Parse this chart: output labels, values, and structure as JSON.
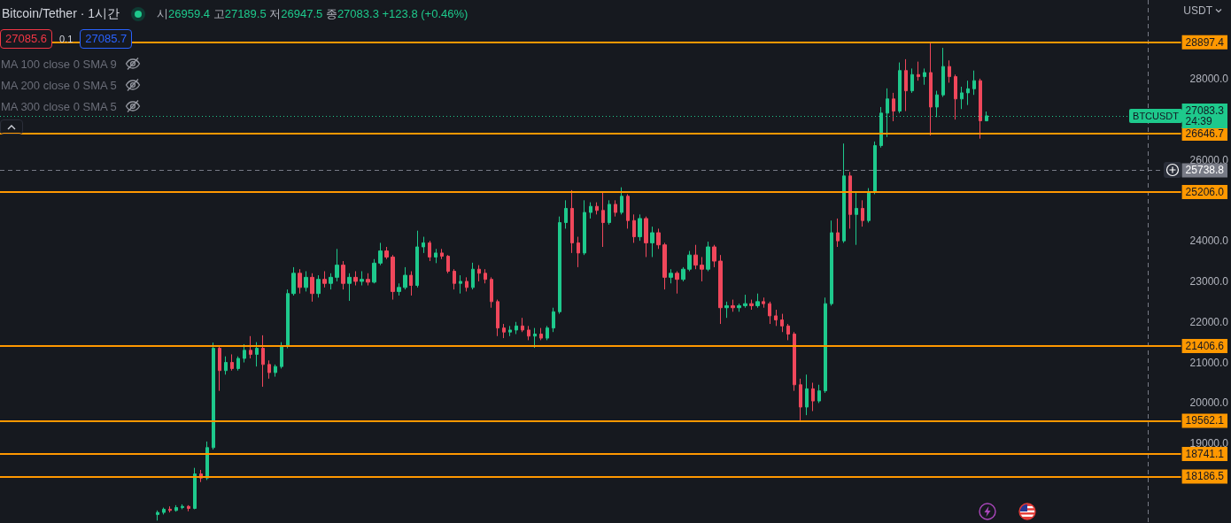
{
  "chart_data": {
    "type": "candlestick",
    "title": "Bitcoin/Tether · 1시간",
    "subtitle": "시26959.4 고27189.5 저26947.5 종27083.3 +123.8 (+0.46%)",
    "ylabel": "USDT",
    "annotations": [
      "27085.6",
      "0.1",
      "27085.7",
      "MA 100 close 0 SMA 9",
      "MA 200 close 0 SMA 5",
      "MA 300 close 0 SMA 5",
      {
        "text": "BTCUSDT",
        "y": 27083.3
      }
    ],
    "categories": [
      null,
      null,
      null,
      null,
      null,
      null,
      null,
      null,
      null,
      null,
      null,
      null,
      null,
      null,
      null,
      null,
      null,
      null,
      null,
      null,
      null,
      null,
      null,
      null,
      null,
      null,
      null,
      null,
      null,
      null,
      null,
      null,
      null,
      null,
      null,
      null,
      null,
      null,
      null,
      null,
      null,
      null,
      null,
      null,
      null,
      null,
      null,
      null,
      null,
      null,
      null,
      null,
      null,
      null,
      null,
      null,
      null,
      null,
      null,
      null,
      null,
      null,
      null,
      null,
      null,
      null,
      null,
      null,
      null,
      null,
      null,
      null,
      null,
      null,
      null,
      null,
      null,
      null,
      null,
      null,
      null,
      null,
      null,
      null,
      null,
      null,
      null,
      null,
      null,
      null,
      null,
      null,
      null,
      null,
      null,
      null,
      null,
      null,
      null,
      null,
      null,
      null,
      null,
      null,
      null,
      null,
      null,
      null,
      null,
      null,
      null,
      null,
      null,
      null,
      null,
      null,
      null,
      null,
      null,
      null,
      null,
      null,
      null,
      null,
      null,
      null,
      null,
      null,
      null,
      null,
      null,
      null,
      null,
      null,
      null,
      null,
      null,
      null,
      null,
      null,
      null,
      null,
      null,
      null,
      null,
      null,
      null,
      null,
      null,
      null,
      null,
      null,
      null,
      null,
      null,
      null,
      null,
      null,
      null,
      null,
      null,
      null,
      null,
      null,
      null,
      null,
      null,
      null,
      null,
      null,
      null,
      null,
      null,
      null,
      null,
      null,
      null,
      null,
      null,
      null,
      null,
      null,
      null,
      null,
      null,
      null,
      null,
      null,
      null,
      null,
      null
    ],
    "ohlc": [
      null,
      null,
      null,
      null,
      null,
      null,
      null,
      null,
      null,
      null,
      null,
      null,
      null,
      null,
      null,
      null,
      null,
      null,
      null,
      null,
      null,
      null,
      null,
      null,
      null,
      [
        17250,
        17350,
        17100,
        17300
      ],
      [
        17300,
        17420,
        17250,
        17380
      ],
      [
        17380,
        17450,
        17300,
        17350
      ],
      [
        17350,
        17480,
        17320,
        17420
      ],
      [
        17420,
        17500,
        17380,
        17450
      ],
      [
        17450,
        17480,
        17330,
        17400
      ],
      [
        17400,
        18400,
        17380,
        18250
      ],
      [
        18250,
        18350,
        18050,
        18150
      ],
      [
        18150,
        19050,
        18100,
        18900
      ],
      [
        18900,
        21490,
        18850,
        21350
      ],
      [
        21350,
        21400,
        20300,
        20800
      ],
      [
        20800,
        21150,
        20700,
        21000
      ],
      [
        21000,
        21200,
        20800,
        20850
      ],
      [
        20850,
        21150,
        20800,
        21100
      ],
      [
        21100,
        21450,
        21000,
        21300
      ],
      [
        21300,
        21650,
        21100,
        21200
      ],
      [
        21200,
        21500,
        20900,
        21350
      ],
      [
        21350,
        21670,
        20400,
        20950
      ],
      [
        20950,
        21050,
        20600,
        20750
      ],
      [
        20750,
        20950,
        20650,
        20900
      ],
      [
        20900,
        21500,
        20850,
        21400
      ],
      [
        21400,
        22800,
        21350,
        22700
      ],
      [
        22700,
        23350,
        22650,
        23200
      ],
      [
        23200,
        23300,
        22700,
        22850
      ],
      [
        22850,
        23250,
        22750,
        23100
      ],
      [
        23100,
        23200,
        22500,
        22700
      ],
      [
        22700,
        23150,
        22600,
        23050
      ],
      [
        23050,
        23250,
        22850,
        22950
      ],
      [
        22950,
        23200,
        22800,
        23100
      ],
      [
        23100,
        23800,
        23000,
        23400
      ],
      [
        23400,
        23500,
        22800,
        22950
      ],
      [
        22950,
        23200,
        22520,
        23100
      ],
      [
        23100,
        23250,
        22900,
        23000
      ],
      [
        23000,
        23250,
        22900,
        23050
      ],
      [
        23050,
        23200,
        22900,
        22980
      ],
      [
        22980,
        23550,
        22950,
        23450
      ],
      [
        23450,
        23950,
        23400,
        23750
      ],
      [
        23750,
        23850,
        23550,
        23600
      ],
      [
        23600,
        23650,
        22550,
        22750
      ],
      [
        22750,
        22950,
        22650,
        22850
      ],
      [
        22850,
        23350,
        22800,
        23150
      ],
      [
        23150,
        23250,
        22650,
        22900
      ],
      [
        22900,
        24250,
        22850,
        23850
      ],
      [
        23850,
        24100,
        23700,
        23950
      ],
      [
        23950,
        24000,
        23500,
        23600
      ],
      [
        23600,
        23800,
        23450,
        23700
      ],
      [
        23700,
        23800,
        23550,
        23620
      ],
      [
        23620,
        23650,
        23200,
        23250
      ],
      [
        23250,
        23300,
        22800,
        22950
      ],
      [
        22950,
        23150,
        22700,
        23000
      ],
      [
        23000,
        23100,
        22750,
        22850
      ],
      [
        22850,
        23460,
        22800,
        23300
      ],
      [
        23300,
        23400,
        23000,
        23200
      ],
      [
        23200,
        23300,
        22950,
        23050
      ],
      [
        23050,
        23100,
        22350,
        22500
      ],
      [
        22500,
        22550,
        21650,
        21850
      ],
      [
        21850,
        21950,
        21600,
        21750
      ],
      [
        21750,
        21900,
        21650,
        21800
      ],
      [
        21800,
        22000,
        21700,
        21900
      ],
      [
        21900,
        22100,
        21750,
        21800
      ],
      [
        21800,
        21900,
        21550,
        21650
      ],
      [
        21650,
        21850,
        21360,
        21700
      ],
      [
        21700,
        21850,
        21550,
        21600
      ],
      [
        21600,
        21900,
        21550,
        21850
      ],
      [
        21850,
        22350,
        21750,
        22250
      ],
      [
        22250,
        24600,
        22200,
        24450
      ],
      [
        24450,
        25000,
        24300,
        24800
      ],
      [
        24800,
        25250,
        23700,
        23950
      ],
      [
        23950,
        24100,
        23350,
        23700
      ],
      [
        23700,
        25000,
        23650,
        24700
      ],
      [
        24700,
        24950,
        24550,
        24850
      ],
      [
        24850,
        24950,
        24650,
        24750
      ],
      [
        24750,
        25200,
        23850,
        24450
      ],
      [
        24450,
        25000,
        24400,
        24900
      ],
      [
        24900,
        25000,
        24600,
        24700
      ],
      [
        24700,
        25320,
        24650,
        25100
      ],
      [
        25100,
        25150,
        24300,
        24500
      ],
      [
        24500,
        24650,
        23950,
        24100
      ],
      [
        24100,
        24650,
        24000,
        24550
      ],
      [
        24550,
        24600,
        23600,
        23950
      ],
      [
        23950,
        24350,
        23600,
        24200
      ],
      [
        24200,
        24300,
        23800,
        23900
      ],
      [
        23900,
        23950,
        22800,
        23100
      ],
      [
        23100,
        23300,
        22950,
        23200
      ],
      [
        23200,
        23250,
        22700,
        23050
      ],
      [
        23050,
        23350,
        23000,
        23300
      ],
      [
        23300,
        23750,
        23250,
        23650
      ],
      [
        23650,
        23900,
        23300,
        23400
      ],
      [
        23400,
        23600,
        23000,
        23300
      ],
      [
        23300,
        23980,
        23250,
        23850
      ],
      [
        23850,
        23900,
        23350,
        23500
      ],
      [
        23500,
        23650,
        21950,
        22350
      ],
      [
        22350,
        22500,
        22100,
        22400
      ],
      [
        22400,
        22550,
        22250,
        22350
      ],
      [
        22350,
        22450,
        22250,
        22400
      ],
      [
        22400,
        22670,
        22350,
        22450
      ],
      [
        22450,
        22550,
        22300,
        22400
      ],
      [
        22400,
        22700,
        22350,
        22500
      ],
      [
        22500,
        22600,
        22350,
        22450
      ],
      [
        22450,
        22500,
        21950,
        22150
      ],
      [
        22150,
        22300,
        21900,
        22050
      ],
      [
        22050,
        22200,
        21750,
        21900
      ],
      [
        21900,
        21950,
        21550,
        21700
      ],
      [
        21700,
        21750,
        20300,
        20450
      ],
      [
        20450,
        20600,
        19530,
        19900
      ],
      [
        19900,
        20700,
        19700,
        20350
      ],
      [
        20350,
        20500,
        19800,
        20050
      ],
      [
        20050,
        20450,
        20000,
        20300
      ],
      [
        20300,
        22600,
        20250,
        22450
      ],
      [
        22450,
        24500,
        22400,
        24200
      ],
      [
        24200,
        24550,
        23850,
        24000
      ],
      [
        24000,
        26400,
        23950,
        25600
      ],
      [
        25600,
        25700,
        24300,
        24650
      ],
      [
        24650,
        25200,
        23900,
        24800
      ],
      [
        24800,
        25000,
        24350,
        24500
      ],
      [
        24500,
        25300,
        24450,
        25200
      ],
      [
        25200,
        26450,
        25150,
        26350
      ],
      [
        26350,
        27300,
        26300,
        27150
      ],
      [
        27150,
        27760,
        26560,
        27500
      ],
      [
        27500,
        27650,
        26950,
        27200
      ],
      [
        27200,
        28400,
        27150,
        28200
      ],
      [
        28200,
        28480,
        27200,
        27700
      ],
      [
        27700,
        28250,
        27650,
        28100
      ],
      [
        28100,
        28420,
        27950,
        28050
      ],
      [
        28050,
        28250,
        27850,
        28150
      ],
      [
        28150,
        28870,
        26600,
        27300
      ],
      [
        27300,
        27700,
        27050,
        27600
      ],
      [
        27600,
        28760,
        27550,
        28300
      ],
      [
        28300,
        28450,
        27900,
        28050
      ],
      [
        28050,
        28100,
        26990,
        27500
      ],
      [
        27500,
        27800,
        27250,
        27650
      ],
      [
        27650,
        27950,
        27350,
        27750
      ],
      [
        27750,
        28200,
        27600,
        27950
      ],
      [
        27950,
        28000,
        26520,
        26960
      ],
      [
        26959.4,
        27189.5,
        26947.5,
        27083.3
      ],
      null,
      null,
      null,
      null,
      null,
      null,
      null,
      null,
      null,
      null,
      null,
      null,
      null,
      null,
      null,
      null,
      null,
      null,
      null,
      null,
      null,
      null,
      null,
      null,
      null,
      null,
      null,
      null,
      null,
      null,
      null
    ],
    "colors": [
      null,
      null,
      null,
      null,
      null,
      null,
      null,
      null,
      null,
      null,
      null,
      null,
      null,
      null,
      null,
      null,
      null,
      null,
      null,
      null,
      null,
      null,
      null,
      null,
      null,
      "#1ec98c",
      "#1ec98c",
      "#f0475b",
      "#1ec98c",
      "#1ec98c",
      "#f0475b",
      "#1ec98c",
      "#f0475b",
      "#1ec98c",
      "#1ec98c",
      "#f0475b",
      "#1ec98c",
      "#f0475b",
      "#1ec98c",
      "#1ec98c",
      "#f0475b",
      "#1ec98c",
      "#f0475b",
      "#f0475b",
      "#1ec98c",
      "#1ec98c",
      "#1ec98c",
      "#1ec98c",
      "#f0475b",
      "#1ec98c",
      "#f0475b",
      "#1ec98c",
      "#f0475b",
      "#1ec98c",
      "#1ec98c",
      "#f0475b",
      "#1ec98c",
      "#f0475b",
      "#1ec98c",
      "#f0475b",
      "#1ec98c",
      "#1ec98c",
      "#f0475b",
      "#f0475b",
      "#1ec98c",
      "#1ec98c",
      "#f0475b",
      "#1ec98c",
      "#1ec98c",
      "#f0475b",
      "#1ec98c",
      "#f0475b",
      "#f0475b",
      "#f0475b",
      "#1ec98c",
      "#f0475b",
      "#1ec98c",
      "#f0475b",
      "#f0475b",
      "#f0475b",
      "#f0475b",
      "#f0475b",
      "#1ec98c",
      "#1ec98c",
      "#f0475b",
      "#f0475b",
      "#1ec98c",
      "#f0475b",
      "#1ec98c",
      "#1ec98c",
      "#1ec98c",
      "#1ec98c",
      "#f0475b",
      "#f0475b",
      "#1ec98c",
      "#1ec98c",
      "#f0475b",
      "#f0475b",
      "#1ec98c",
      "#f0475b",
      "#1ec98c",
      "#f0475b",
      "#f0475b",
      "#1ec98c",
      "#f0475b",
      "#1ec98c",
      "#f0475b",
      "#f0475b",
      "#1ec98c",
      "#f0475b",
      "#1ec98c",
      "#1ec98c",
      "#f0475b",
      "#f0475b",
      "#1ec98c",
      "#f0475b",
      "#f0475b",
      "#1ec98c",
      "#f0475b",
      "#1ec98c",
      "#1ec98c",
      "#f0475b",
      "#1ec98c",
      "#f0475b",
      "#f0475b",
      "#f0475b",
      "#f0475b",
      "#f0475b",
      "#f0475b",
      "#f0475b",
      "#1ec98c",
      "#f0475b",
      "#1ec98c",
      "#1ec98c",
      "#1ec98c",
      "#f0475b",
      "#1ec98c",
      "#f0475b",
      "#1ec98c",
      "#f0475b",
      "#1ec98c",
      "#1ec98c",
      "#1ec98c",
      "#1ec98c",
      "#f0475b",
      "#1ec98c",
      "#f0475b",
      "#1ec98c",
      "#f0475b",
      "#1ec98c",
      "#f0475b",
      "#1ec98c",
      "#1ec98c",
      "#f0475b",
      "#f0475b",
      "#1ec98c",
      "#1ec98c",
      "#1ec98c",
      "#f0475b",
      "#1ec98c",
      null,
      null,
      null,
      null,
      null,
      null,
      null,
      null,
      null,
      null,
      null,
      null,
      null,
      null,
      null,
      null,
      null,
      null,
      null,
      null,
      null,
      null,
      null,
      null,
      null,
      null,
      null,
      null,
      null,
      null,
      null
    ],
    "ylim": [
      17040,
      29940
    ],
    "yticks": [
      {
        "value": 19000,
        "label": "19000.0"
      },
      {
        "value": 20000,
        "label": "20000.0"
      },
      {
        "value": 21000,
        "label": "21000.0"
      },
      {
        "value": 22000,
        "label": "22000.0"
      },
      {
        "value": 23000,
        "label": "23000.0"
      },
      {
        "value": 24000,
        "label": "24000.0"
      },
      {
        "value": 26000,
        "label": "26000.0"
      },
      {
        "value": 28000,
        "label": "28000.0"
      }
    ],
    "tick_labels": "y",
    "ref_lines": [
      {
        "axis": "y",
        "value": 28897.4,
        "label": "28897.4",
        "color": "#ff9800"
      },
      {
        "axis": "y",
        "value": 26646.7,
        "label": "26646.7",
        "color": "#ff9800"
      },
      {
        "axis": "y",
        "value": 25206.0,
        "label": "25206.0",
        "color": "#ff9800"
      },
      {
        "axis": "y",
        "value": 21406.6,
        "label": "21406.6",
        "color": "#ff9800"
      },
      {
        "axis": "y",
        "value": 19562.1,
        "label": "19562.1",
        "color": "#ff9800"
      },
      {
        "axis": "y",
        "value": 18741.1,
        "label": "18741.1",
        "color": "#ff9800"
      },
      {
        "axis": "y",
        "value": 18186.5,
        "label": "18186.5",
        "color": "#ff9800"
      },
      {
        "axis": "y",
        "value": 27083.3,
        "label": "27083.3\n24:39",
        "color": "#1ec98c",
        "line_style": "dotted"
      },
      {
        "axis": "y",
        "value": 25738.8,
        "label": "25738.8",
        "color": "#787b86",
        "line_style": "dashed"
      }
    ]
  }
}
